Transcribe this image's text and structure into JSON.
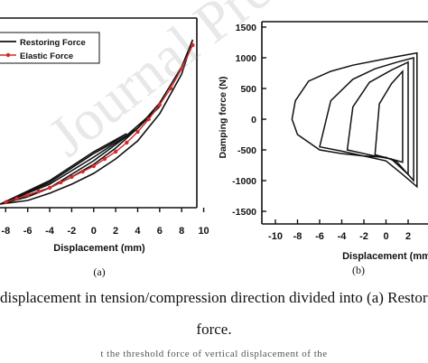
{
  "watermark": "Journal Pre-proof",
  "caption": {
    "line1": "displacement in tension/compression direction divided into (a) Restoring",
    "line2": "force.",
    "line3": "t  the  threshold  force  of  vertical  displacement  of  the"
  },
  "colors": {
    "restoring": "#111111",
    "elastic": "#d42a2a",
    "axis": "#111111"
  },
  "chart_data": [
    {
      "type": "line",
      "panel_label": "(a)",
      "xlabel": "Displacement (mm)",
      "ylabel": "",
      "xlim": [
        -8,
        10
      ],
      "x_ticks": [
        -8,
        -6,
        -4,
        -2,
        0,
        2,
        4,
        6,
        8,
        10
      ],
      "legend": {
        "placement": "top-left",
        "entries": [
          "Restoring Force",
          "Elastic Force"
        ]
      },
      "series": [
        {
          "name": "Restoring Force",
          "loops": [
            {
              "x": [
                -8.5,
                -6,
                -4,
                -2,
                0,
                2,
                4,
                6,
                8,
                9,
                8,
                6,
                4,
                2,
                0,
                -2,
                -4,
                -6,
                -8.5
              ],
              "y": [
                0.02,
                0.06,
                0.11,
                0.17,
                0.24,
                0.33,
                0.44,
                0.58,
                0.78,
                0.93,
                0.74,
                0.52,
                0.37,
                0.27,
                0.19,
                0.13,
                0.08,
                0.04,
                0.02
              ]
            },
            {
              "x": [
                -8.5,
                -4,
                0,
                3,
                6,
                4,
                2,
                0,
                -4,
                -8.5
              ],
              "y": [
                0.02,
                0.13,
                0.28,
                0.4,
                0.56,
                0.44,
                0.35,
                0.26,
                0.11,
                0.02
              ]
            },
            {
              "x": [
                -8.5,
                -4,
                0,
                3,
                1.5,
                0,
                -4,
                -8.5
              ],
              "y": [
                0.02,
                0.15,
                0.31,
                0.41,
                0.35,
                0.3,
                0.14,
                0.02
              ]
            }
          ]
        },
        {
          "name": "Elastic Force",
          "x": [
            -8,
            -7,
            -6,
            -5,
            -4,
            -3,
            -2,
            -1,
            0,
            1,
            2,
            3,
            4,
            5,
            6,
            7,
            8,
            9
          ],
          "y": [
            0.03,
            0.05,
            0.07,
            0.09,
            0.11,
            0.14,
            0.17,
            0.2,
            0.23,
            0.27,
            0.31,
            0.36,
            0.42,
            0.49,
            0.57,
            0.66,
            0.77,
            0.9
          ]
        }
      ]
    },
    {
      "type": "line",
      "panel_label": "(b)",
      "xlabel": "Displacement (mm",
      "ylabel": "Damping force (N)",
      "xlim": [
        -10,
        2
      ],
      "ylim": [
        -1500,
        1500
      ],
      "x_ticks": [
        -10,
        -8,
        -6,
        -4,
        -2,
        0,
        2
      ],
      "y_ticks": [
        1500,
        1000,
        500,
        0,
        -500,
        -1000,
        -1500
      ],
      "series": [
        {
          "name": "",
          "loops": [
            {
              "x": [
                -8.5,
                -8.2,
                -7,
                -5,
                -3,
                -1,
                1,
                2.8,
                2.8,
                1.5,
                0,
                -2,
                -4,
                -6,
                -8,
                -8.5
              ],
              "y": [
                0,
                300,
                620,
                780,
                880,
                950,
                1020,
                1080,
                -1100,
                -900,
                -680,
                -600,
                -560,
                -500,
                -250,
                0
              ]
            },
            {
              "x": [
                -6,
                -5,
                -3,
                -1,
                1,
                2.5,
                2.5,
                1,
                0,
                -2,
                -4,
                -6
              ],
              "y": [
                -450,
                300,
                650,
                820,
                930,
                1000,
                -1000,
                -700,
                -620,
                -600,
                -520,
                -450
              ]
            },
            {
              "x": [
                -3.5,
                -3,
                -1.5,
                0.5,
                2,
                2,
                0.5,
                -1,
                -3.5
              ],
              "y": [
                -500,
                200,
                600,
                800,
                930,
                -900,
                -650,
                -600,
                -500
              ]
            },
            {
              "x": [
                -1,
                -0.6,
                0.5,
                1.5,
                1.5,
                0.5,
                -1
              ],
              "y": [
                -580,
                250,
                580,
                780,
                -700,
                -650,
                -580
              ]
            }
          ]
        }
      ]
    }
  ]
}
